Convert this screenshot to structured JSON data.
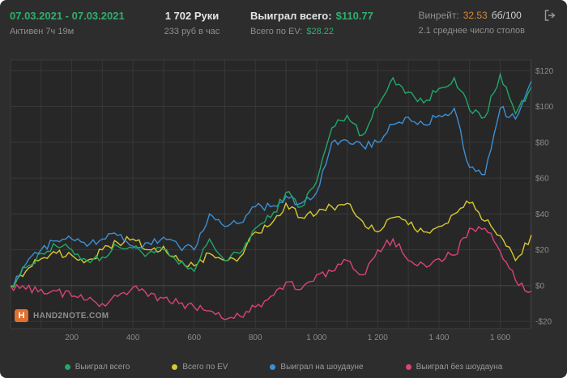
{
  "colors": {
    "window_bg": "#2d2d2d",
    "chart_bg": "#272727",
    "grid": "#383838",
    "grid_zero": "#4a4a4a",
    "frame": "#3c3c3c",
    "axis_text": "#8a8a8a",
    "accent_green": "#2fae6e",
    "accent_orange": "#d8883c",
    "logo_orange": "#e0702f"
  },
  "header": {
    "date_range": "07.03.2021 - 07.03.2021",
    "active_time": "Активен 7ч 19м",
    "hands": "1 702 Руки",
    "hourly": "233 руб в час",
    "won_label": "Выиграл всего:",
    "won_value": "$110.77",
    "ev_label": "Всего по EV:",
    "ev_value": "$28.22",
    "winrate_label": "Винрейт:",
    "winrate_value": "32.53",
    "winrate_units": "бб/100",
    "avg_tables": "2.1 среднее число столов"
  },
  "logo": {
    "text": "HAND2NOTE.COM"
  },
  "chart_data": {
    "type": "line",
    "xlim": [
      0,
      1702
    ],
    "ylim": [
      -24,
      126
    ],
    "grid": true,
    "legend_position": "bottom",
    "x_tick_values": [
      200,
      400,
      600,
      800,
      1000,
      1200,
      1400,
      1600
    ],
    "x_ticks": [
      "200",
      "400",
      "600",
      "800",
      "1 000",
      "1 200",
      "1 400",
      "1 600"
    ],
    "y_tick_values": [
      120,
      100,
      80,
      60,
      40,
      20,
      0,
      -20
    ],
    "y_ticks": [
      "$120",
      "$100",
      "$80",
      "$60",
      "$40",
      "$20",
      "$0",
      "-$20"
    ],
    "x": [
      0,
      50,
      100,
      150,
      200,
      250,
      300,
      350,
      400,
      450,
      500,
      550,
      600,
      650,
      700,
      750,
      800,
      850,
      900,
      950,
      1000,
      1050,
      1100,
      1150,
      1200,
      1250,
      1300,
      1350,
      1400,
      1450,
      1500,
      1550,
      1600,
      1650,
      1702
    ],
    "series": [
      {
        "name": "Выиграл всего",
        "color": "#1fa968",
        "values": [
          0,
          10,
          18,
          22,
          20,
          14,
          16,
          22,
          21,
          18,
          20,
          12,
          8,
          26,
          14,
          18,
          32,
          38,
          52,
          44,
          58,
          88,
          95,
          84,
          100,
          116,
          108,
          102,
          110,
          116,
          98,
          94,
          118,
          96,
          110.77
        ]
      },
      {
        "name": "Всего по EV",
        "color": "#d7c92f",
        "values": [
          0,
          8,
          15,
          18,
          17,
          14,
          20,
          24,
          26,
          20,
          22,
          14,
          11,
          18,
          14,
          16,
          30,
          34,
          46,
          38,
          40,
          44,
          46,
          36,
          30,
          38,
          34,
          30,
          33,
          40,
          46,
          36,
          28,
          14,
          28.22
        ]
      },
      {
        "name": "Выиграл на шоудауне",
        "color": "#3d8fd4",
        "values": [
          0,
          12,
          20,
          25,
          26,
          22,
          26,
          28,
          22,
          24,
          27,
          22,
          20,
          40,
          33,
          35,
          44,
          44,
          50,
          46,
          52,
          80,
          81,
          78,
          80,
          90,
          94,
          90,
          95,
          99,
          66,
          62,
          99,
          93,
          114
        ]
      },
      {
        "name": "Выиграл без шоудауна",
        "color": "#da4379",
        "values": [
          0,
          -2,
          -2,
          -3,
          -6,
          -8,
          -10,
          -6,
          -1,
          -6,
          -7,
          -10,
          -12,
          -14,
          -19,
          -17,
          -12,
          -6,
          2,
          -2,
          6,
          8,
          14,
          6,
          20,
          26,
          14,
          12,
          15,
          17,
          32,
          32,
          19,
          3,
          -3.2
        ]
      }
    ]
  }
}
